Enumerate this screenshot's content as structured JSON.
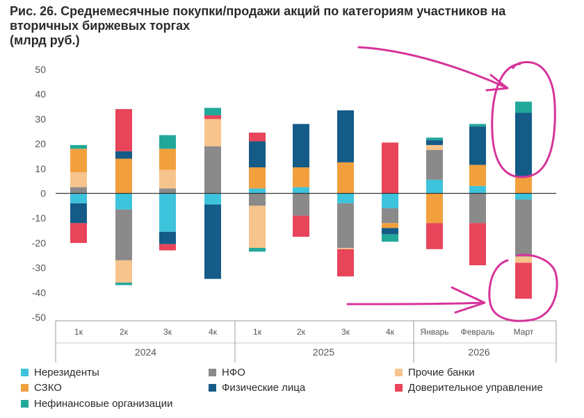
{
  "title": "Рис. 26. Среднемесячные покупки/продажи акций по категориям участников на вторичных биржевых торгах",
  "subtitle": "(млрд руб.)",
  "chart_data": {
    "type": "bar",
    "stacked": true,
    "ylim": [
      -50,
      50
    ],
    "yticks": [
      50,
      40,
      30,
      20,
      10,
      0,
      -10,
      -20,
      -30,
      -40,
      -50
    ],
    "categories": [
      "1к",
      "2к",
      "3к",
      "4к",
      "1к",
      "2к",
      "3к",
      "4к",
      "Январь",
      "Февраль",
      "Март"
    ],
    "groups": [
      {
        "label": "2024",
        "start": 0,
        "end": 3
      },
      {
        "label": "2025",
        "start": 4,
        "end": 7
      },
      {
        "label": "2026",
        "start": 8,
        "end": 10
      }
    ],
    "series": [
      {
        "name": "Нерезиденты",
        "color": "#3ec3dc",
        "values": [
          -4,
          -6.5,
          -15.5,
          -4.5,
          2,
          2.5,
          -4,
          -6,
          5.5,
          3,
          -2.5
        ]
      },
      {
        "name": "НФО",
        "color": "#8a8a8a",
        "values": [
          2.5,
          -20.5,
          2,
          19,
          -5,
          -9,
          -18,
          -6,
          12,
          -12,
          -23
        ]
      },
      {
        "name": "Прочие банки",
        "color": "#f6c48c",
        "values": [
          6,
          -9,
          7.5,
          11,
          -17,
          0,
          -0.5,
          0,
          2,
          0,
          -2.5
        ]
      },
      {
        "name": "СЗКО",
        "color": "#f2a03d",
        "values": [
          9.5,
          14,
          8.5,
          0,
          8.5,
          8,
          12.5,
          -2,
          -12,
          8.5,
          7
        ]
      },
      {
        "name": "Физические лица",
        "color": "#145b87",
        "values": [
          -8,
          3,
          -5,
          -30,
          10.5,
          17.5,
          21,
          -2.5,
          2,
          15.5,
          25.5
        ]
      },
      {
        "name": "Доверительное управление",
        "color": "#e8445a",
        "values": [
          -8,
          17,
          -2.5,
          1.5,
          3.5,
          -8.5,
          -11,
          20.5,
          -10.5,
          -17,
          -14.5
        ]
      },
      {
        "name": "Нефинансовые организации",
        "color": "#22a89a",
        "values": [
          1.5,
          -1,
          5.5,
          3,
          -1.5,
          0,
          0,
          -3,
          1,
          1,
          4.5
        ]
      }
    ],
    "grid": false,
    "legend_position": "bottom"
  }
}
